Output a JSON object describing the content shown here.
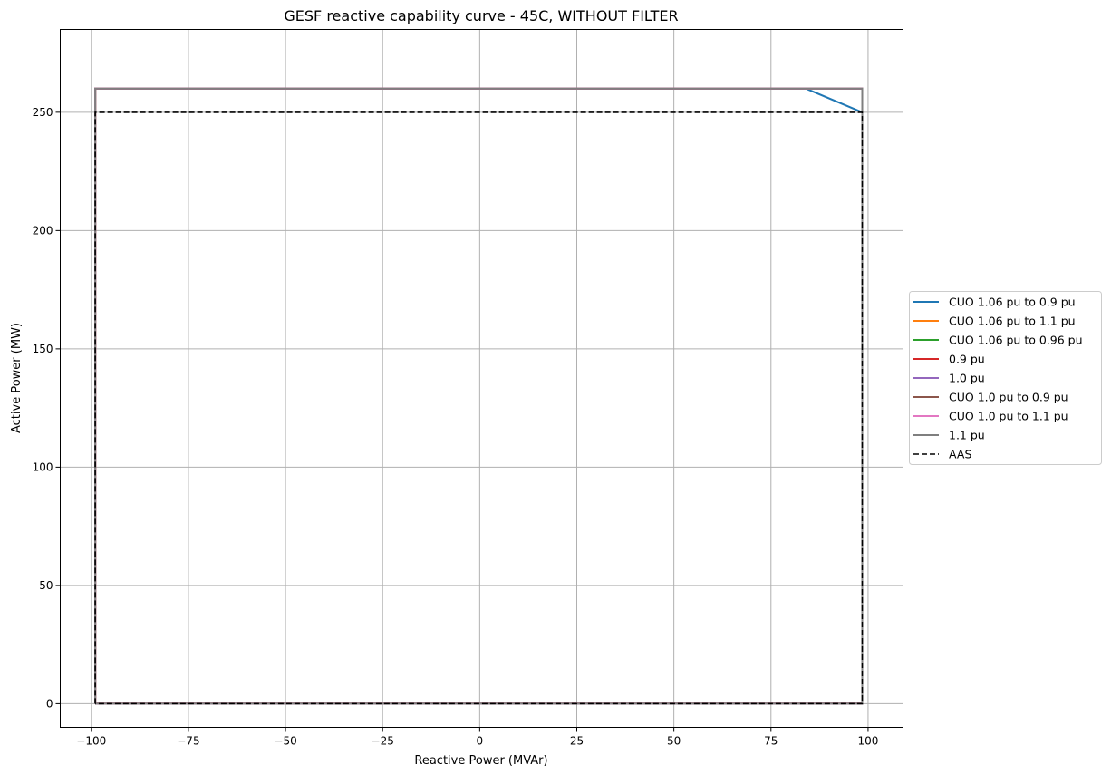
{
  "chart_data": {
    "type": "line",
    "title": "GESF reactive capability curve - 45C, WITHOUT FILTER",
    "xlabel": "Reactive Power (MVAr)",
    "ylabel": "Active Power (MW)",
    "xlim": [
      -108,
      109
    ],
    "ylim": [
      -10,
      285
    ],
    "grid": true,
    "legend_position": "center-right-outside",
    "x_ticks": [
      -100,
      -75,
      -50,
      -25,
      0,
      25,
      50,
      75,
      100
    ],
    "x_tick_labels": [
      "−100",
      "−75",
      "−50",
      "−25",
      "0",
      "25",
      "50",
      "75",
      "100"
    ],
    "y_ticks": [
      0,
      50,
      100,
      150,
      200,
      250
    ],
    "y_tick_labels": [
      "0",
      "50",
      "100",
      "150",
      "200",
      "250"
    ],
    "series": [
      {
        "name": "CUO 1.06 pu to 0.9 pu",
        "color": "#1f77b4",
        "dash": "solid",
        "x": [
          -99,
          -99,
          84,
          98.5,
          98.5,
          -99
        ],
        "y": [
          0,
          260,
          260,
          250,
          0,
          0
        ]
      },
      {
        "name": "CUO 1.06 pu to 1.1 pu",
        "color": "#ff7f0e",
        "dash": "solid",
        "x": [
          -99,
          -99,
          98.5,
          98.5,
          -99
        ],
        "y": [
          0,
          260,
          260,
          0,
          0
        ]
      },
      {
        "name": "CUO 1.06 pu to 0.96 pu",
        "color": "#2ca02c",
        "dash": "solid",
        "x": [
          -99,
          -99,
          98.5,
          98.5,
          -99
        ],
        "y": [
          0,
          260,
          260,
          0,
          0
        ]
      },
      {
        "name": "0.9 pu",
        "color": "#d62728",
        "dash": "solid",
        "x": [
          -99,
          -99,
          98.5,
          98.5,
          -99
        ],
        "y": [
          0,
          260,
          260,
          0,
          0
        ]
      },
      {
        "name": "1.0 pu",
        "color": "#9467bd",
        "dash": "solid",
        "x": [
          -99,
          -99,
          98.5,
          98.5,
          -99
        ],
        "y": [
          0,
          260,
          260,
          0,
          0
        ]
      },
      {
        "name": "CUO 1.0 pu to 0.9 pu",
        "color": "#8c564b",
        "dash": "solid",
        "x": [
          -99,
          -99,
          98.5,
          98.5,
          -99
        ],
        "y": [
          0,
          260,
          260,
          0,
          0
        ]
      },
      {
        "name": "CUO 1.0 pu to 1.1 pu",
        "color": "#e377c2",
        "dash": "solid",
        "x": [
          -99,
          -99,
          98.5,
          98.5,
          -99
        ],
        "y": [
          0,
          260,
          260,
          0,
          0
        ]
      },
      {
        "name": "1.1 pu",
        "color": "#7f7f7f",
        "dash": "solid",
        "x": [
          -99,
          -99,
          98.5,
          98.5,
          -99
        ],
        "y": [
          0,
          260,
          260,
          0,
          0
        ]
      },
      {
        "name": "AAS",
        "color": "#000000",
        "dash": "dashed",
        "x": [
          -99,
          -99,
          98.5,
          98.5,
          -99
        ],
        "y": [
          0,
          250,
          250,
          0,
          0
        ]
      }
    ]
  }
}
